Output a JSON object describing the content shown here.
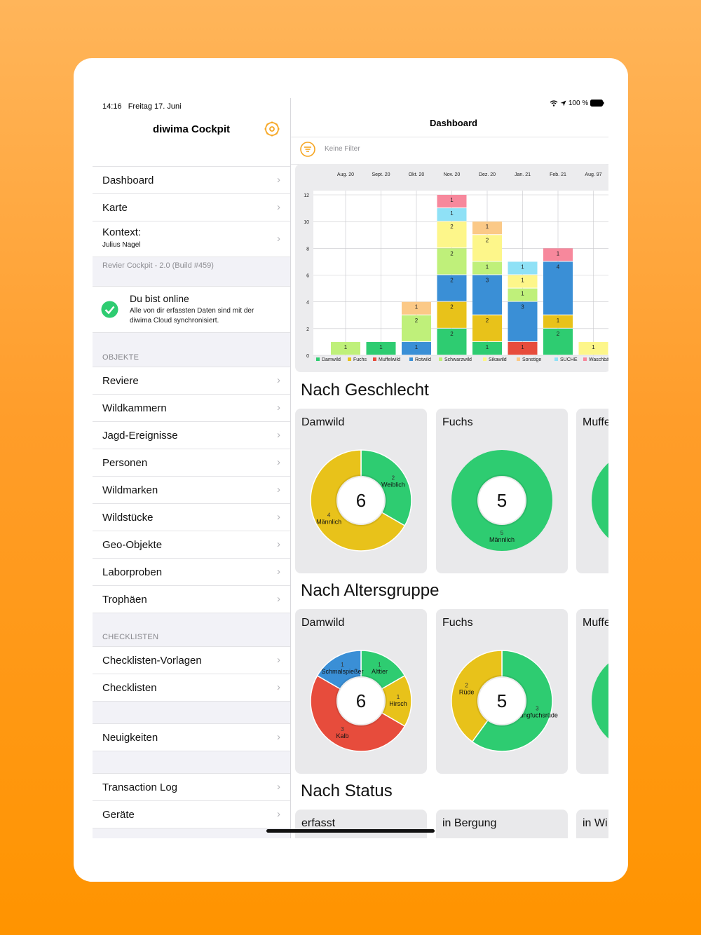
{
  "status": {
    "time": "14:16",
    "date": "Freitag 17. Juni",
    "battery": "100 %"
  },
  "sidebar": {
    "title": "diwima Cockpit",
    "nav": [
      {
        "label": "Dashboard"
      },
      {
        "label": "Karte"
      }
    ],
    "context": {
      "label": "Kontext:",
      "value": "Julius Nagel"
    },
    "version": "Revier Cockpit - 2.0 (Build #459)",
    "online": {
      "title": "Du bist online",
      "text1": "Alle von dir erfassten Daten sind mit der",
      "text2": "diwima Cloud synchronisiert."
    },
    "objects_header": "OBJEKTE",
    "objects": [
      "Reviere",
      "Wildkammern",
      "Jagd-Ereignisse",
      "Personen",
      "Wildmarken",
      "Wildstücke",
      "Geo-Objekte",
      "Laborproben",
      "Trophäen"
    ],
    "checklists_header": "CHECKLISTEN",
    "checklists": [
      "Checklisten-Vorlagen",
      "Checklisten"
    ],
    "news": "Neuigkeiten",
    "misc": [
      "Transaction Log",
      "Geräte"
    ]
  },
  "main": {
    "nav_title": "Dashboard",
    "filter_text": "Keine Filter",
    "sections": {
      "gender": "Nach Geschlecht",
      "age": "Nach Altersgruppe",
      "status": "Nach Status"
    },
    "status_cards": [
      "erfasst",
      "in Bergung",
      "in Wi"
    ]
  },
  "colors": {
    "accent": "#f6a623",
    "Damwild": "#2ecc71",
    "Fuchs": "#e8c21a",
    "Muffelwild": "#e74c3c",
    "Rotwild": "#3a8fd6",
    "Schwarzwild": "#bff07a",
    "Sikawild": "#fdf68a",
    "Sonstige": "#fbc987",
    "SUCHE": "#8fe1f6",
    "Waschbär": "#f7889c"
  },
  "chart_data": [
    {
      "type": "bar",
      "stacked": true,
      "categories": [
        "Aug. 20",
        "Sept. 20",
        "Okt. 20",
        "Nov. 20",
        "Dez. 20",
        "Jan. 21",
        "Feb. 21",
        "Aug. 97"
      ],
      "ylim": [
        0,
        12
      ],
      "yticks": [
        0,
        2,
        4,
        6,
        8,
        10,
        12
      ],
      "grid": true,
      "legend_position": "bottom",
      "series": [
        {
          "name": "Damwild",
          "values": [
            0,
            1,
            0,
            2,
            1,
            0,
            2,
            0
          ]
        },
        {
          "name": "Fuchs",
          "values": [
            0,
            0,
            0,
            2,
            2,
            0,
            1,
            0
          ]
        },
        {
          "name": "Muffelwild",
          "values": [
            0,
            0,
            0,
            0,
            0,
            1,
            0,
            0
          ]
        },
        {
          "name": "Rotwild",
          "values": [
            0,
            0,
            1,
            2,
            3,
            3,
            4,
            0
          ]
        },
        {
          "name": "Schwarzwild",
          "values": [
            1,
            0,
            2,
            2,
            1,
            1,
            0,
            0
          ]
        },
        {
          "name": "Sikawild",
          "values": [
            0,
            0,
            0,
            2,
            2,
            1,
            0,
            1
          ]
        },
        {
          "name": "Sonstige",
          "values": [
            0,
            0,
            1,
            0,
            1,
            0,
            0,
            0
          ]
        },
        {
          "name": "SUCHE",
          "values": [
            0,
            0,
            0,
            1,
            0,
            1,
            0,
            0
          ]
        },
        {
          "name": "Waschbär",
          "values": [
            0,
            0,
            0,
            1,
            0,
            0,
            1,
            0
          ]
        }
      ]
    },
    {
      "type": "pie",
      "title": "Damwild",
      "total": "6",
      "slices": [
        {
          "label": "Weiblich",
          "value": 2,
          "color": "#2ecc71"
        },
        {
          "label": "Männlich",
          "value": 4,
          "color": "#e8c21a"
        }
      ]
    },
    {
      "type": "pie",
      "title": "Fuchs",
      "total": "5",
      "slices": [
        {
          "label": "Männlich",
          "value": 5,
          "color": "#2ecc71"
        }
      ]
    },
    {
      "type": "pie",
      "title": "Muffe",
      "total": "",
      "slices": [
        {
          "label": "",
          "value": 1,
          "color": "#2ecc71"
        }
      ]
    },
    {
      "type": "pie",
      "title": "Damwild",
      "total": "6",
      "slices": [
        {
          "label": "Alttier",
          "value": 1,
          "color": "#2ecc71"
        },
        {
          "label": "Hirsch",
          "value": 1,
          "color": "#e8c21a"
        },
        {
          "label": "Kalb",
          "value": 3,
          "color": "#e74c3c"
        },
        {
          "label": "Schmalspießer",
          "value": 1,
          "color": "#3a8fd6"
        }
      ]
    },
    {
      "type": "pie",
      "title": "Fuchs",
      "total": "5",
      "slices": [
        {
          "label": "Jungfuchsrüde",
          "value": 3,
          "color": "#2ecc71"
        },
        {
          "label": "Rüde",
          "value": 2,
          "color": "#e8c21a"
        }
      ]
    },
    {
      "type": "pie",
      "title": "Muffe",
      "total": "",
      "slices": [
        {
          "label": "",
          "value": 1,
          "color": "#2ecc71"
        }
      ]
    }
  ]
}
